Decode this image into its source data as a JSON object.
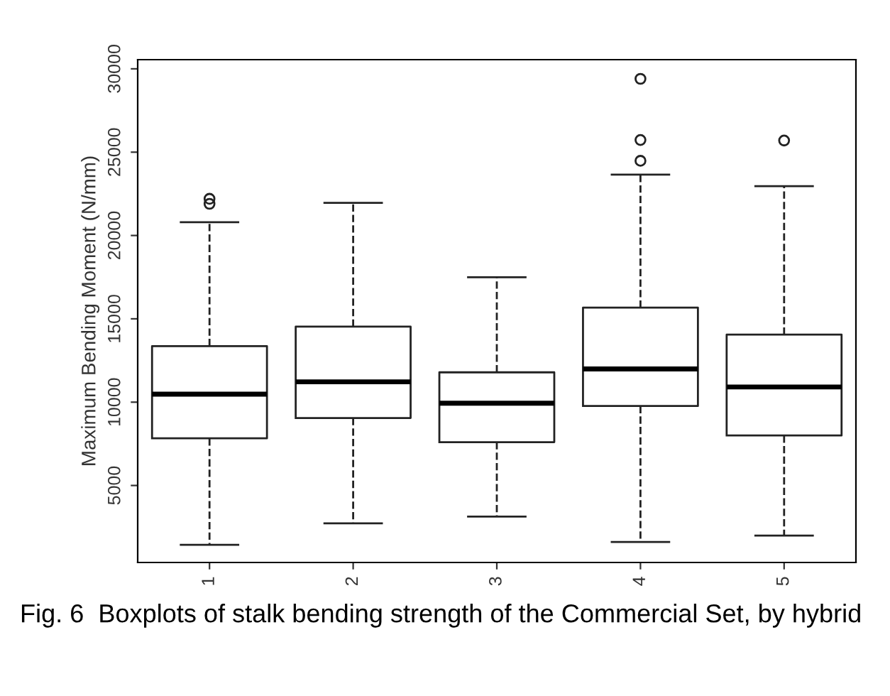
{
  "chart_data": {
    "type": "box",
    "ylabel": "Maximum Bending Moment (N/mm)",
    "categories": [
      "1",
      "2",
      "3",
      "4",
      "5"
    ],
    "boxes": [
      {
        "low": 1440,
        "q1": 7830,
        "median": 10480,
        "q3": 13360,
        "high": 20800,
        "outliers": [
          21900,
          22200
        ]
      },
      {
        "low": 2730,
        "q1": 9050,
        "median": 11220,
        "q3": 14530,
        "high": 21960
      },
      {
        "low": 3130,
        "q1": 7600,
        "median": 9940,
        "q3": 11790,
        "high": 17490
      },
      {
        "low": 1610,
        "q1": 9770,
        "median": 11990,
        "q3": 15670,
        "high": 23650,
        "outliers": [
          24480,
          25730,
          29400
        ]
      },
      {
        "low": 1990,
        "q1": 8000,
        "median": 10910,
        "q3": 14050,
        "high": 22960,
        "outliers": [
          25700
        ]
      }
    ],
    "ylim": [
      380,
      30550
    ],
    "yticks": [
      5000,
      10000,
      15000,
      20000,
      25000,
      30000
    ],
    "grid": false,
    "line_style": "dashed",
    "annotations": [
      "Fig. 6  Boxplots of stalk bending strength of the Commercial Set, by hybrid"
    ]
  }
}
